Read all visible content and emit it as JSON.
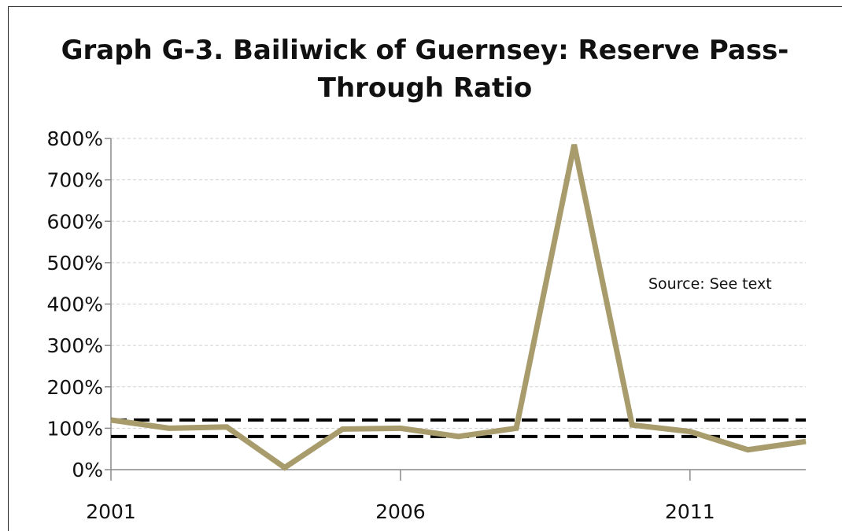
{
  "chart_data": {
    "type": "line",
    "title_line1": "Graph G-3. Bailiwick of Guernsey: Reserve Pass-",
    "title_line2": "Through Ratio",
    "note": "Source: See text",
    "x": [
      2001,
      2002,
      2003,
      2004,
      2005,
      2006,
      2007,
      2008,
      2009,
      2010,
      2011,
      2012,
      2013
    ],
    "series": [
      {
        "values": [
          120,
          100,
          103,
          5,
          98,
          100,
          80,
          100,
          785,
          108,
          92,
          48,
          68
        ],
        "color": "#a89b6c"
      }
    ],
    "reference_lines": [
      {
        "value": 120,
        "style": "dashed",
        "color": "#000000"
      },
      {
        "value": 80,
        "style": "dashed",
        "color": "#000000"
      }
    ],
    "ylim": [
      0,
      800
    ],
    "yticks": [
      0,
      100,
      200,
      300,
      400,
      500,
      600,
      700,
      800
    ],
    "ytick_labels": [
      "0%",
      "100%",
      "200%",
      "300%",
      "400%",
      "500%",
      "600%",
      "700%",
      "800%"
    ],
    "xticks": [
      2001,
      2006,
      2011
    ],
    "xtick_labels": [
      "2001",
      "2006",
      "2011"
    ],
    "grid": true
  }
}
